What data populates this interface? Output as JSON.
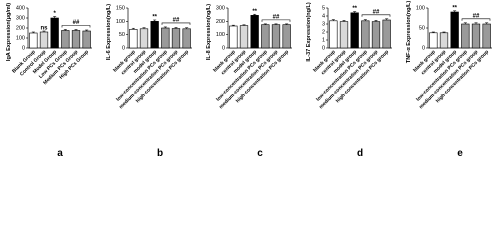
{
  "chart_data": [
    {
      "type": "bar",
      "panel_label": "a",
      "ylabel": "IgA Expression(μg/ml)",
      "categories": [
        "Blank Group",
        "Control Group",
        "Model Group",
        "Low PCs Group",
        "Medium PCs Group",
        "High PCs Group"
      ],
      "values": [
        150,
        160,
        300,
        175,
        175,
        170
      ],
      "errors": [
        10,
        10,
        15,
        10,
        10,
        10
      ],
      "colors": [
        "#ffffff",
        "#d9d9d9",
        "#000000",
        "#9a9a9a",
        "#9a9a9a",
        "#9a9a9a"
      ],
      "bar_labels": [
        null,
        "ns",
        "*",
        null,
        null,
        null
      ],
      "group_label": "##",
      "ylim": [
        0,
        400
      ],
      "yticks": [
        0,
        100,
        200,
        300,
        400
      ]
    },
    {
      "type": "bar",
      "panel_label": "b",
      "ylabel": "IL-6 Expression(ng/L)",
      "categories": [
        "blank group",
        "control group",
        "model group",
        "low-concentration PCs group",
        "medium-concentration PCs group",
        "high-concentration PCs group"
      ],
      "values": [
        70,
        72,
        100,
        75,
        73,
        72
      ],
      "errors": [
        4,
        4,
        5,
        4,
        4,
        4
      ],
      "colors": [
        "#ffffff",
        "#d9d9d9",
        "#000000",
        "#9a9a9a",
        "#9a9a9a",
        "#9a9a9a"
      ],
      "bar_labels": [
        null,
        null,
        "**",
        null,
        null,
        null
      ],
      "group_label": "##",
      "ylim": [
        0,
        150
      ],
      "yticks": [
        0,
        50,
        100,
        150
      ]
    },
    {
      "type": "bar",
      "panel_label": "c",
      "ylabel": "IL-8 Expression(ng/L)",
      "categories": [
        "blank group",
        "control group",
        "model group",
        "low-concentration PCs group",
        "medium-concentration PCs group",
        "high-concentration PCs group"
      ],
      "values": [
        165,
        168,
        245,
        175,
        175,
        175
      ],
      "errors": [
        6,
        6,
        8,
        6,
        6,
        6
      ],
      "colors": [
        "#ffffff",
        "#d9d9d9",
        "#000000",
        "#9a9a9a",
        "#9a9a9a",
        "#9a9a9a"
      ],
      "bar_labels": [
        null,
        null,
        "**",
        null,
        null,
        null
      ],
      "group_label": "##",
      "ylim": [
        0,
        300
      ],
      "yticks": [
        0,
        100,
        200,
        300
      ]
    },
    {
      "type": "bar",
      "panel_label": "d",
      "ylabel": "IL-37 Expression(ng/L)",
      "categories": [
        "blank group",
        "control group",
        "model group",
        "low-concentration PCs group",
        "medium-concentration PCs group",
        "high-concentration PCs group"
      ],
      "values": [
        3.4,
        3.3,
        4.4,
        3.4,
        3.3,
        3.5
      ],
      "errors": [
        0.15,
        0.15,
        0.15,
        0.15,
        0.15,
        0.15
      ],
      "colors": [
        "#ffffff",
        "#d9d9d9",
        "#000000",
        "#9a9a9a",
        "#9a9a9a",
        "#9a9a9a"
      ],
      "bar_labels": [
        null,
        null,
        "**",
        null,
        null,
        null
      ],
      "group_label": "##",
      "ylim": [
        0,
        5
      ],
      "yticks": [
        0,
        1,
        2,
        3,
        4,
        5
      ]
    },
    {
      "type": "bar",
      "panel_label": "e",
      "ylabel": "TNF-α Expression(ng/L)",
      "categories": [
        "blank group",
        "control group",
        "model group",
        "low-concentration PCs group",
        "medium-concentration PCs group",
        "high-concentration PCs group"
      ],
      "values": [
        38,
        38,
        90,
        60,
        60,
        60
      ],
      "errors": [
        2,
        2,
        3,
        3,
        3,
        3
      ],
      "colors": [
        "#ffffff",
        "#d9d9d9",
        "#000000",
        "#9a9a9a",
        "#9a9a9a",
        "#9a9a9a"
      ],
      "bar_labels": [
        null,
        null,
        "**",
        null,
        null,
        null
      ],
      "group_label": "##",
      "ylim": [
        0,
        100
      ],
      "yticks": [
        0,
        50,
        100
      ]
    }
  ]
}
